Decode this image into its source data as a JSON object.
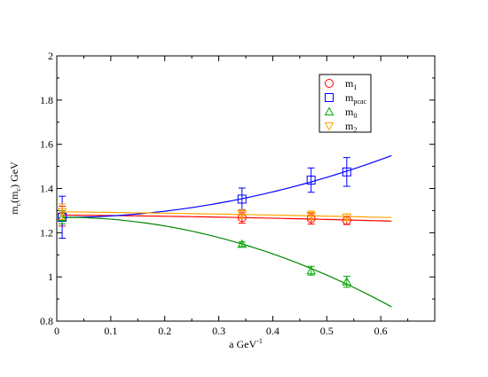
{
  "chart_data": {
    "type": "scatter",
    "title": "",
    "xlabel": {
      "base": "a GeV",
      "sup": "-1"
    },
    "ylabel": {
      "m": "m",
      "sub1": "c",
      "mid": "(m",
      "sub2": "c",
      "end": ") GeV"
    },
    "xlim": [
      0,
      0.7
    ],
    "ylim": [
      0.8,
      2.0
    ],
    "x_ticks": [
      "0",
      "0.1",
      "0.2",
      "0.3",
      "0.4",
      "0.5",
      "0.6"
    ],
    "x_tick_values": [
      0,
      0.1,
      0.2,
      0.3,
      0.4,
      0.5,
      0.6
    ],
    "y_ticks": [
      "0.8",
      "1",
      "1.2",
      "1.4",
      "1.6",
      "1.8",
      "2"
    ],
    "y_tick_values": [
      0.8,
      1.0,
      1.2,
      1.4,
      1.6,
      1.8,
      2.0
    ],
    "legend_position": "top-right",
    "series": [
      {
        "name": {
          "base": "m",
          "sub": "1"
        },
        "marker": "circle",
        "color": "#ff0000",
        "points": [
          {
            "x": 0.01,
            "y": 1.275,
            "err": 0.045
          },
          {
            "x": 0.343,
            "y": 1.268,
            "err": 0.025
          },
          {
            "x": 0.471,
            "y": 1.264,
            "err": 0.025
          },
          {
            "x": 0.537,
            "y": 1.255,
            "err": 0.018
          }
        ],
        "fit": {
          "color": "#ff0000",
          "x0": 0.01,
          "x1": 0.62,
          "coeffs": [
            1.28,
            -0.02,
            -0.04
          ]
        }
      },
      {
        "name": {
          "base": "m",
          "sub": "pcac"
        },
        "marker": "square",
        "color": "#0000ff",
        "points": [
          {
            "x": 0.01,
            "y": 1.27,
            "err": 0.095
          },
          {
            "x": 0.343,
            "y": 1.352,
            "err": 0.05
          },
          {
            "x": 0.471,
            "y": 1.438,
            "err": 0.055
          },
          {
            "x": 0.537,
            "y": 1.475,
            "err": 0.065
          }
        ],
        "fit": {
          "color": "#0000ff",
          "x0": 0.01,
          "x1": 0.62,
          "coeffs": [
            1.269,
            -0.006,
            0.738
          ]
        }
      },
      {
        "name": {
          "base": "m",
          "sub": "0"
        },
        "marker": "triangle-up",
        "color": "#00aa00",
        "points": [
          {
            "x": 0.01,
            "y": 1.27,
            "err": 0.03
          },
          {
            "x": 0.343,
            "y": 1.148,
            "err": 0.01
          },
          {
            "x": 0.471,
            "y": 1.028,
            "err": 0.02
          },
          {
            "x": 0.537,
            "y": 0.978,
            "err": 0.025
          }
        ],
        "fit": {
          "color": "#008800",
          "x0": 0.01,
          "x1": 0.62,
          "coeffs": [
            1.27,
            0.02,
            -1.087
          ]
        }
      },
      {
        "name": {
          "base": "m",
          "sub": "2"
        },
        "marker": "triangle-down",
        "color": "#ffa500",
        "points": [
          {
            "x": 0.01,
            "y": 1.295,
            "err": 0.035
          },
          {
            "x": 0.343,
            "y": 1.285,
            "err": 0.02
          },
          {
            "x": 0.471,
            "y": 1.278,
            "err": 0.02
          },
          {
            "x": 0.537,
            "y": 1.27,
            "err": 0.015
          }
        ],
        "fit": {
          "color": "#ffa500",
          "x0": 0.01,
          "x1": 0.62,
          "coeffs": [
            1.295,
            -0.03,
            -0.02
          ]
        }
      }
    ]
  }
}
